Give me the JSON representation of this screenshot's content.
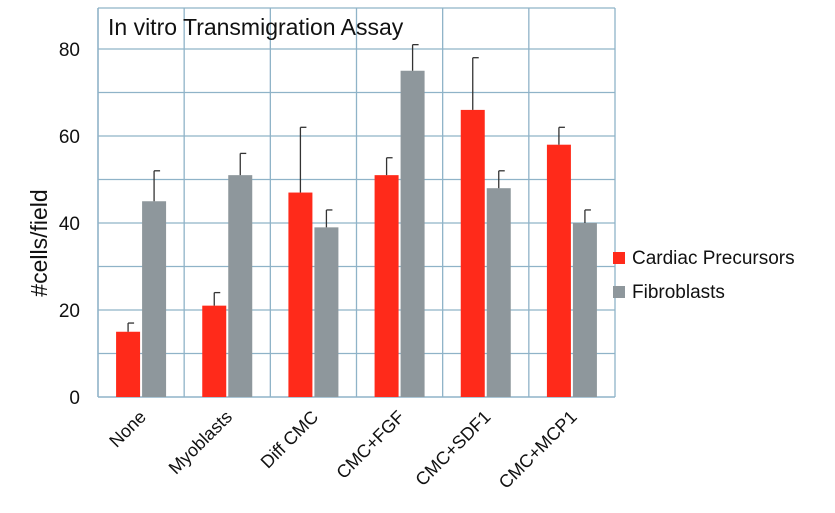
{
  "chart_data": {
    "type": "bar",
    "title": "In vitro Transmigration Assay",
    "xlabel": "",
    "ylabel": "#cells/field",
    "ylim": [
      0,
      80
    ],
    "yticks": [
      0,
      20,
      40,
      60,
      80
    ],
    "grid": true,
    "legend_position": "right",
    "categories": [
      "None",
      "Myoblasts",
      "Diff CMC",
      "CMC+FGF",
      "CMC+SDF1",
      "CMC+MCP1"
    ],
    "series": [
      {
        "name": "Cardiac Precursors",
        "color": "#ff2a1a",
        "values": [
          15,
          21,
          47,
          51,
          66,
          58
        ],
        "error": [
          2,
          3,
          15,
          4,
          12,
          4
        ]
      },
      {
        "name": "Fibroblasts",
        "color": "#8e979c",
        "values": [
          45,
          51,
          39,
          75,
          48,
          40
        ],
        "error": [
          7,
          5,
          4,
          6,
          4,
          3
        ]
      }
    ]
  }
}
